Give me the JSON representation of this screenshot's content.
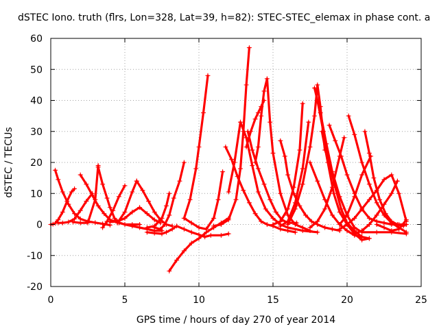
{
  "chart_data": {
    "type": "line",
    "title": "dSTEC Iono. truth (flrs, Lon=328, Lat=39, h=82): STEC-STEC_elemax in phase cont. a",
    "xlabel": "GPS time / hours of day 270 of year 2014",
    "ylabel": "dSTEC  / TECUs",
    "xlim": [
      0,
      25
    ],
    "ylim": [
      -20,
      60
    ],
    "xticks": [
      0,
      5,
      10,
      15,
      20,
      25
    ],
    "yticks": [
      -20,
      -10,
      0,
      10,
      20,
      30,
      40,
      50,
      60
    ],
    "grid": true,
    "legend": "none",
    "marker": "plus",
    "color": "#ff0000",
    "series": [
      {
        "x": [
          0.0,
          0.15,
          0.3,
          0.5,
          0.8,
          1.1,
          1.4,
          1.6
        ],
        "y": [
          0.0,
          0.1,
          0.4,
          1.5,
          4.0,
          7.5,
          10.5,
          11.5
        ]
      },
      {
        "x": [
          0.3,
          0.5,
          0.8,
          1.2,
          1.6,
          2.0,
          2.5,
          3.0,
          3.5,
          4.0
        ],
        "y": [
          17.5,
          14.5,
          10.5,
          6.5,
          3.5,
          1.8,
          1.0,
          0.6,
          0.2,
          -0.2
        ]
      },
      {
        "x": [
          0.5,
          0.8,
          1.2,
          1.6,
          2.0,
          2.4,
          2.8
        ],
        "y": [
          0.5,
          0.5,
          0.8,
          1.8,
          4.5,
          7.5,
          10.0
        ]
      },
      {
        "x": [
          2.0,
          2.4,
          2.8,
          3.2,
          3.6,
          4.0,
          4.5,
          5.0,
          5.5,
          6.0,
          7.0,
          7.5
        ],
        "y": [
          16.0,
          13.0,
          9.5,
          6.0,
          3.5,
          1.5,
          0.8,
          0.0,
          -0.5,
          -1.0,
          -2.0,
          -2.0
        ]
      },
      {
        "x": [
          1.5,
          2.0,
          2.5,
          3.0,
          3.2
        ],
        "y": [
          0.8,
          0.5,
          0.5,
          8.0,
          19.0
        ]
      },
      {
        "x": [
          3.2,
          3.5,
          3.8,
          4.0,
          4.3,
          4.6,
          5.0,
          5.5,
          6.0
        ],
        "y": [
          18.5,
          13.0,
          8.5,
          5.5,
          2.0,
          0.5,
          0.0,
          0.0,
          0.0
        ]
      },
      {
        "x": [
          3.5,
          3.8,
          4.2,
          4.6,
          5.0
        ],
        "y": [
          -1.0,
          1.0,
          4.5,
          9.0,
          12.5
        ]
      },
      {
        "x": [
          4.0,
          4.5,
          5.0,
          5.5,
          6.0,
          6.5,
          7.0,
          7.4
        ],
        "y": [
          0.8,
          1.0,
          2.0,
          4.0,
          5.5,
          3.5,
          1.5,
          0.5
        ]
      },
      {
        "x": [
          4.5,
          5.0,
          5.5,
          5.8
        ],
        "y": [
          0.5,
          4.0,
          10.5,
          14.0
        ]
      },
      {
        "x": [
          5.8,
          6.2,
          6.6,
          7.0,
          7.4,
          7.8,
          8.2
        ],
        "y": [
          14.0,
          11.0,
          7.5,
          4.0,
          1.5,
          0.0,
          -0.5
        ]
      },
      {
        "x": [
          6.5,
          7.0,
          7.5,
          7.8,
          8.2,
          8.5,
          9.0,
          9.5,
          10.0,
          10.4,
          10.8,
          11.5,
          12.0
        ],
        "y": [
          -2.5,
          -2.8,
          -3.0,
          -2.5,
          -1.5,
          -0.5,
          -1.5,
          -2.5,
          -3.3,
          -4.0,
          -3.5,
          -3.5,
          -3.0
        ]
      },
      {
        "x": [
          7.0,
          7.4,
          7.7,
          8.0,
          8.3,
          8.7,
          9.0
        ],
        "y": [
          -1.0,
          -1.5,
          0.0,
          3.0,
          8.5,
          14.0,
          20.0
        ]
      },
      {
        "x": [
          6.5,
          7.0,
          7.5,
          7.8,
          8.0
        ],
        "y": [
          -1.0,
          -0.5,
          2.0,
          6.0,
          10.0
        ]
      },
      {
        "x": [
          8.0,
          8.5,
          9.0,
          9.5,
          10.0,
          10.5,
          11.0,
          11.5,
          12.0
        ],
        "y": [
          -15.0,
          -11.5,
          -8.5,
          -6.0,
          -4.5,
          -2.5,
          -1.0,
          0.5,
          2.0
        ]
      },
      {
        "x": [
          9.0,
          9.4,
          9.8,
          10.0,
          10.3,
          10.6
        ],
        "y": [
          2.0,
          8.0,
          18.0,
          25.0,
          36.0,
          48.0
        ]
      },
      {
        "x": [
          9.0,
          9.5,
          10.0,
          10.5,
          11.0,
          11.3,
          11.6
        ],
        "y": [
          2.0,
          0.5,
          -1.0,
          -1.5,
          2.0,
          8.0,
          17.0
        ]
      },
      {
        "x": [
          11.8,
          12.2,
          12.6,
          13.0,
          13.4,
          13.8,
          14.2,
          14.6,
          15.0,
          15.5,
          16.0,
          16.5
        ],
        "y": [
          25.0,
          21.0,
          15.5,
          11.0,
          7.0,
          3.5,
          1.0,
          0.0,
          -0.5,
          -1.5,
          -2.0,
          -2.5
        ]
      },
      {
        "x": [
          11.0,
          11.5,
          12.0,
          12.5,
          12.8,
          13.0,
          13.2,
          13.4
        ],
        "y": [
          -0.5,
          0.0,
          1.5,
          8.0,
          18.0,
          30.0,
          45.0,
          57.0
        ]
      },
      {
        "x": [
          12.0,
          12.4,
          12.8,
          13.2,
          13.6,
          14.0,
          14.5,
          15.0,
          15.5,
          16.0,
          17.0,
          18.0
        ],
        "y": [
          10.5,
          20.0,
          33.0,
          28.0,
          19.0,
          10.5,
          5.0,
          2.0,
          0.0,
          -1.0,
          -2.0,
          -2.5
        ]
      },
      {
        "x": [
          13.3,
          13.6,
          14.0,
          14.4,
          14.8,
          15.2,
          15.6,
          16.0,
          16.6
        ],
        "y": [
          30.0,
          24.0,
          18.0,
          13.0,
          8.0,
          4.0,
          1.5,
          0.5,
          0.5
        ]
      },
      {
        "x": [
          13.8,
          14.0,
          14.2,
          14.4,
          14.6,
          14.8,
          15.0,
          15.5,
          16.0,
          16.5,
          17.0,
          17.5
        ],
        "y": [
          20.0,
          25.0,
          35.0,
          43.0,
          47.0,
          33.0,
          23.0,
          10.0,
          3.0,
          0.0,
          -1.0,
          -2.0
        ]
      },
      {
        "x": [
          13.2,
          13.5,
          13.8,
          14.0,
          14.2,
          14.4
        ],
        "y": [
          25.0,
          30.0,
          34.0,
          36.0,
          38.0,
          40.0
        ]
      },
      {
        "x": [
          15.5,
          15.8,
          16.0,
          16.4,
          16.8,
          17.2,
          17.6,
          18.0,
          18.5,
          19.0,
          19.5
        ],
        "y": [
          27.0,
          22.0,
          16.0,
          10.0,
          6.0,
          3.0,
          1.0,
          0.0,
          -1.0,
          -1.5,
          -2.0
        ]
      },
      {
        "x": [
          15.0,
          15.5,
          16.0,
          16.4,
          16.8,
          17.0
        ],
        "y": [
          0.0,
          1.0,
          5.0,
          12.0,
          24.0,
          39.0
        ]
      },
      {
        "x": [
          15.5,
          16.0,
          16.5,
          17.0,
          17.4
        ],
        "y": [
          -0.5,
          1.0,
          7.0,
          18.0,
          33.0
        ]
      },
      {
        "x": [
          16.0,
          16.5,
          17.0,
          17.5,
          17.8,
          18.0,
          18.2,
          18.5
        ],
        "y": [
          0.0,
          5.0,
          13.0,
          25.0,
          35.0,
          45.0,
          38.0,
          24.0
        ]
      },
      {
        "x": [
          17.8,
          18.2,
          18.6,
          19.0,
          19.5,
          20.0,
          20.5,
          21.0,
          22.0,
          23.0,
          24.0
        ],
        "y": [
          44.0,
          36.0,
          26.0,
          17.0,
          9.0,
          3.0,
          -1.0,
          -2.5,
          -2.5,
          -2.5,
          -3.0
        ]
      },
      {
        "x": [
          18.0,
          18.4,
          18.8,
          19.2,
          19.6,
          20.0,
          20.5,
          21.0,
          21.5
        ],
        "y": [
          40.0,
          30.0,
          20.0,
          12.0,
          5.0,
          0.5,
          -2.0,
          -4.0,
          -4.5
        ]
      },
      {
        "x": [
          18.3,
          18.7,
          19.1,
          19.5,
          20.0,
          20.5,
          21.0,
          21.5
        ],
        "y": [
          30.0,
          20.0,
          10.0,
          4.0,
          0.0,
          -3.0,
          -5.0,
          -4.5
        ]
      },
      {
        "x": [
          17.5,
          18.0,
          18.5,
          19.0,
          19.5,
          20.0,
          20.5,
          21.0
        ],
        "y": [
          20.0,
          14.0,
          8.0,
          3.0,
          0.0,
          -2.0,
          -3.5,
          -4.0
        ]
      },
      {
        "x": [
          18.8,
          19.2,
          19.6,
          20.0,
          20.5,
          21.0,
          21.5,
          22.0,
          22.5,
          23.0,
          23.5,
          24.0
        ],
        "y": [
          32.0,
          27.0,
          22.0,
          16.0,
          10.0,
          5.0,
          2.0,
          1.0,
          0.5,
          0.0,
          0.0,
          0.0
        ]
      },
      {
        "x": [
          17.5,
          18.0,
          18.5,
          19.0,
          19.5,
          19.8
        ],
        "y": [
          -1.0,
          1.0,
          5.0,
          12.0,
          22.0,
          28.0
        ]
      },
      {
        "x": [
          20.1,
          20.5,
          21.0,
          21.5,
          22.0,
          22.5,
          23.0,
          23.5,
          24.0
        ],
        "y": [
          35.0,
          29.0,
          20.0,
          13.0,
          7.0,
          3.0,
          0.5,
          -1.0,
          -2.5
        ]
      },
      {
        "x": [
          21.2,
          21.5,
          21.8,
          22.2,
          22.6,
          23.0,
          23.4,
          23.8
        ],
        "y": [
          30.0,
          23.0,
          15.0,
          8.0,
          3.5,
          1.0,
          0.0,
          -0.5
        ]
      },
      {
        "x": [
          20.5,
          21.0,
          21.5,
          22.0,
          22.5,
          23.0,
          23.4
        ],
        "y": [
          -3.0,
          -2.0,
          0.0,
          3.0,
          6.5,
          10.0,
          14.0
        ]
      },
      {
        "x": [
          19.5,
          20.0,
          20.5,
          21.0,
          21.5,
          22.0,
          22.5,
          23.0,
          23.5,
          24.0
        ],
        "y": [
          -1.5,
          0.0,
          2.0,
          5.0,
          8.0,
          11.0,
          14.5,
          16.0,
          10.0,
          1.0
        ]
      },
      {
        "x": [
          19.5,
          20.0,
          20.5,
          21.0,
          21.6
        ],
        "y": [
          0.0,
          3.0,
          9.0,
          16.0,
          22.0
        ]
      },
      {
        "x": [
          22.0,
          22.5,
          23.0,
          23.5,
          24.0
        ],
        "y": [
          0.0,
          -1.0,
          -2.0,
          -1.5,
          1.5
        ]
      }
    ]
  }
}
